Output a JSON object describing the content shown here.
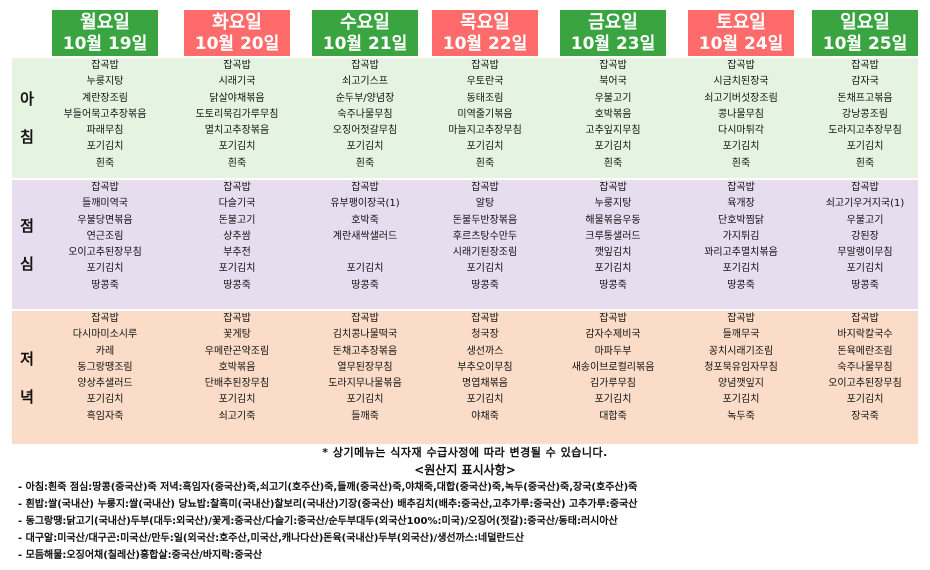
{
  "days": [
    {
      "day": "월요일",
      "date": "10월 19일",
      "color": "#3aa441"
    },
    {
      "day": "화요일",
      "date": "10월 20일",
      "color": "#ff6b6b"
    },
    {
      "day": "수요일",
      "date": "10월 21일",
      "color": "#3aa441"
    },
    {
      "day": "목요일",
      "date": "10월 22일",
      "color": "#ff6b6b"
    },
    {
      "day": "금요일",
      "date": "10월 23일",
      "color": "#3aa441"
    },
    {
      "day": "토요일",
      "date": "10월 24일",
      "color": "#ff6b6b"
    },
    {
      "day": "일요일",
      "date": "10월 25일",
      "color": "#3aa441"
    }
  ],
  "meals": [
    {
      "label_chars": [
        "아",
        "침"
      ],
      "bg": "#e5f4e1",
      "menus": [
        [
          "잡곡밥",
          "누룽지탕",
          "계란장조림",
          "부들어묵고추장볶음",
          "파래무침",
          "포기김치",
          "흰죽"
        ],
        [
          "잡곡밥",
          "시래기국",
          "닭살야채볶음",
          "도토리묵김가루무침",
          "멸치고추장볶음",
          "포기김치",
          "흰죽"
        ],
        [
          "잡곡밥",
          "쇠고기스프",
          "순두부/양념장",
          "숙주나물무침",
          "오징어젓갈무침",
          "포기김치",
          "흰죽"
        ],
        [
          "잡곡밥",
          "우토란국",
          "동태조림",
          "미역줄기볶음",
          "마늘지고추장무침",
          "포기김치",
          "흰죽"
        ],
        [
          "잡곡밥",
          "북어국",
          "우불고기",
          "호박볶음",
          "고추잎지무침",
          "포기김치",
          "흰죽"
        ],
        [
          "잡곡밥",
          "시금치된장국",
          "쇠고기버섯장조림",
          "콩나물무침",
          "다시마튀각",
          "포기김치",
          "흰죽"
        ],
        [
          "잡곡밥",
          "감자국",
          "돈채프고볶음",
          "강낭콩조림",
          "도라지고추장무침",
          "포기김치",
          "흰죽"
        ]
      ]
    },
    {
      "label_chars": [
        "점",
        "심"
      ],
      "bg": "#e8dcef",
      "menus": [
        [
          "잡곡밥",
          "들깨미역국",
          "우불당면볶음",
          "연근조림",
          "오이고추된장무침",
          "포기김치",
          "땅콩죽"
        ],
        [
          "잡곡밥",
          "다슬기국",
          "돈불고기",
          "상추쌈",
          "부추전",
          "포기김치",
          "땅콩죽"
        ],
        [
          "잡곡밥",
          "유부팽이장국(1)",
          "호박죽",
          "계란새싹샐러드",
          "",
          "포기김치",
          "땅콩죽"
        ],
        [
          "잡곡밥",
          "알탕",
          "돈불두반장볶음",
          "후르츠탕수만두",
          "시래기된장조림",
          "포기김치",
          "땅콩죽"
        ],
        [
          "잡곡밥",
          "누룽지탕",
          "해물볶음우동",
          "크루통샐러드",
          "깻잎김치",
          "포기김치",
          "땅콩죽"
        ],
        [
          "잡곡밥",
          "육개장",
          "단호박찜닭",
          "가지튀김",
          "꽈리고추멸치볶음",
          "포기김치",
          "땅콩죽"
        ],
        [
          "잡곡밥",
          "쇠고기우거지국(1)",
          "우불고기",
          "강된장",
          "무말랭이무침",
          "포기김치",
          "땅콩죽"
        ]
      ]
    },
    {
      "label_chars": [
        "저",
        "녁"
      ],
      "bg": "#fbdcc8",
      "menus": [
        [
          "잡곡밥",
          "다시마미소시루",
          "카레",
          "동그랑땡조림",
          "양상추샐러드",
          "포기김치",
          "흑임자죽"
        ],
        [
          "잡곡밥",
          "꽃게탕",
          "우메란곤약조림",
          "호박볶음",
          "단배추된장무침",
          "포기김치",
          "쇠고기죽"
        ],
        [
          "잡곡밥",
          "김치콩나물떡국",
          "돈채고추장볶음",
          "열무된장무침",
          "도라지무나물볶음",
          "포기김치",
          "들깨죽"
        ],
        [
          "잡곡밥",
          "청국장",
          "생선까스",
          "부추오이무침",
          "명엽채볶음",
          "포기김치",
          "야채죽"
        ],
        [
          "잡곡밥",
          "감자수제비국",
          "마파두부",
          "새송이브로컬리볶음",
          "김가루무침",
          "포기김치",
          "대합죽"
        ],
        [
          "잡곡밥",
          "들깨무국",
          "꽁치시래기조림",
          "청포묵유임자무침",
          "양념깻잎지",
          "포기김치",
          "녹두죽"
        ],
        [
          "잡곡밥",
          "바지락칼국수",
          "돈육메란조림",
          "숙주나물무침",
          "오이고추된장무침",
          "포기김치",
          "장국죽"
        ]
      ]
    }
  ],
  "notice": "* 상기메뉴는 식자재 수급사정에 따라 변경될 수 있습니다.",
  "origin_title": "<원산지 표시사항>",
  "origin_lines": [
    "- 아침:흰죽 점심:땅콩(중국산)죽 저녁:흑임자(중국산)죽,쇠고기(호주산)죽,들깨(중국산)죽,야채죽,대합(중국산)죽,녹두(중국산)죽,장국(호주산)죽",
    "- 흰밥:쌀(국내산) 누룽지:쌀(국내산) 당뇨밥:찰흑미(국내산)찰보리(국내산)기장(중국산) 배추김치(배추:중국산,고추가루:중국산) 고추가루:중국산",
    "- 동그랑땡:닭고기(국내산)두부(대두:외국산)/꽃게:중국산/다슬기:중국산/순두부대두(외국산100%:미국)/오징어(젓갈):중국산/동태:러시아산",
    "- 대구알:미국산/대구곤:미국산/만두:일(외국산:호주산,미국산,캐나다산)돈육(국내산)두부(외국산)/생선까스:네덜란드산",
    "- 모듬해물:오징어채(칠레산)홍합살:중국산/바지락:중국산"
  ]
}
